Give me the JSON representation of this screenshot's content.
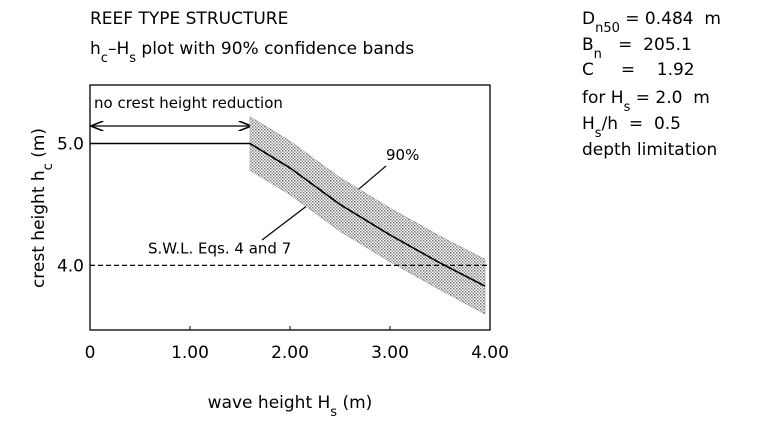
{
  "chart_data": {
    "type": "line",
    "title": "REEF TYPE STRUCTURE",
    "subtitle": [
      "h",
      "c",
      "–H",
      "s",
      " plot with 90% confidence bands"
    ],
    "x_label": [
      "wave height H",
      "s",
      " (m)"
    ],
    "y_label": [
      "crest height h",
      "c",
      " (m)"
    ],
    "xlim": [
      0,
      4.0
    ],
    "ylim": [
      3.47,
      5.48
    ],
    "xticks": [
      0,
      {
        "value": 1,
        "label": "1.00"
      },
      {
        "value": 2,
        "label": "2.00"
      },
      {
        "value": 3,
        "label": "3.00"
      },
      {
        "value": 4,
        "label": "4.00"
      }
    ],
    "yticks": [
      {
        "value": 4,
        "label": "4.0"
      },
      {
        "value": 5,
        "label": "5.0"
      }
    ],
    "series": [
      {
        "color": "#000000",
        "x": [
          0,
          1.6
        ],
        "values": [
          5.0,
          5.0
        ]
      },
      {
        "color": "#000000",
        "x": [
          1.6,
          2.0,
          2.5,
          3.0,
          3.5,
          3.95
        ],
        "values": [
          5.0,
          4.8,
          4.5,
          4.25,
          4.02,
          3.83
        ]
      }
    ],
    "band": {
      "color": "#888888",
      "x": [
        1.6,
        2.0,
        2.5,
        3.0,
        3.5,
        3.95
      ],
      "upper": [
        5.22,
        5.02,
        4.72,
        4.47,
        4.24,
        4.05
      ],
      "lower": [
        4.78,
        4.58,
        4.28,
        4.03,
        3.8,
        3.6
      ]
    },
    "swl": {
      "value": 4.0,
      "label": "S.W.L. Eqs. 4 and 7"
    },
    "annotations": {
      "no_reduction": "no crest height reduction",
      "band_label": "90%"
    },
    "parameters": [
      [
        "D",
        "n50",
        " = 0.484  m"
      ],
      [
        "B",
        "n",
        "   =  205.1"
      ],
      [
        "C     =    1.92"
      ],
      [
        "for H",
        "s",
        " = 2.0  m"
      ],
      [
        "H",
        "s",
        "/h  =  0.5"
      ],
      [
        "depth limitation"
      ]
    ]
  }
}
